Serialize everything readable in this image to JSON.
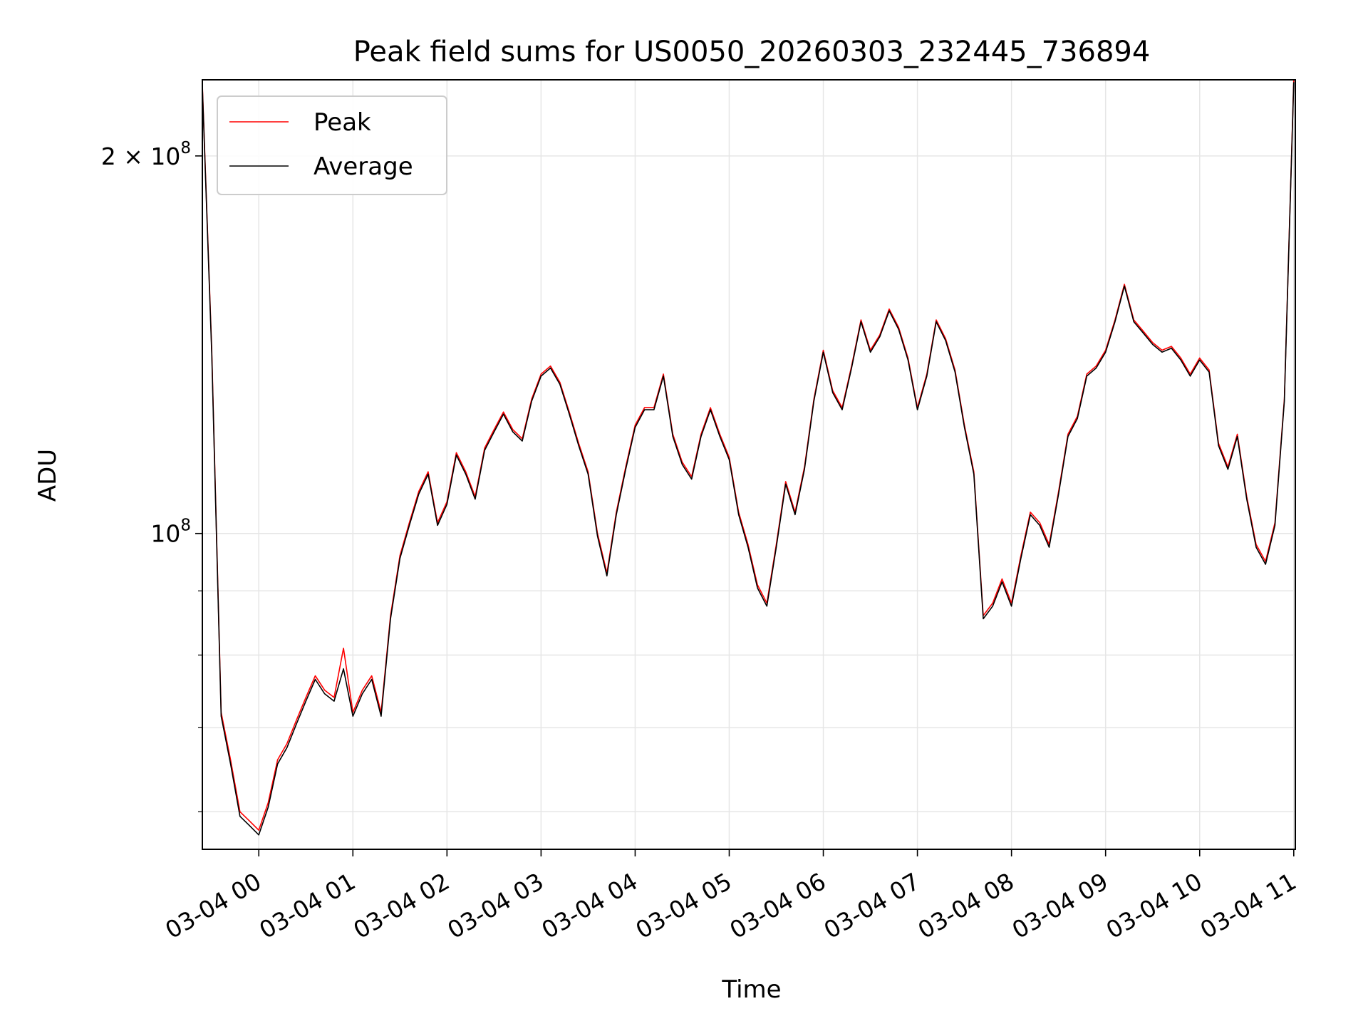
{
  "chart_data": {
    "type": "line",
    "title": "Peak field sums for US0050_20260303_232445_736894",
    "xlabel": "Time",
    "ylabel": "ADU",
    "yscale": "log",
    "ylim": [
      56000000,
      230000000
    ],
    "xlim": [
      "03-03 23:24",
      "03-04 11:01"
    ],
    "x_ticks": [
      "03-04 00",
      "03-04 01",
      "03-04 02",
      "03-04 03",
      "03-04 04",
      "03-04 05",
      "03-04 06",
      "03-04 07",
      "03-04 08",
      "03-04 09",
      "03-04 10",
      "03-04 11"
    ],
    "y_ticks": [
      {
        "value": 100000000,
        "base": "10",
        "exp": "8",
        "mult": ""
      },
      {
        "value": 200000000,
        "base": "10",
        "exp": "8",
        "mult": "2 × "
      }
    ],
    "y_minor_ticks": [
      60000000,
      70000000,
      80000000,
      90000000
    ],
    "grid": true,
    "legend_position": "top-left",
    "series": [
      {
        "name": "Peak",
        "color": "#ff0000"
      },
      {
        "name": "Average",
        "color": "#000000"
      }
    ],
    "x": [
      "03-03 23:24",
      "03-03 23:30",
      "03-03 23:36",
      "03-03 23:42",
      "03-03 23:48",
      "03-03 23:54",
      "03-04 00:00",
      "03-04 00:06",
      "03-04 00:12",
      "03-04 00:18",
      "03-04 00:24",
      "03-04 00:30",
      "03-04 00:36",
      "03-04 00:42",
      "03-04 00:48",
      "03-04 00:54",
      "03-04 01:00",
      "03-04 01:06",
      "03-04 01:12",
      "03-04 01:18",
      "03-04 01:24",
      "03-04 01:30",
      "03-04 01:36",
      "03-04 01:42",
      "03-04 01:48",
      "03-04 01:54",
      "03-04 02:00",
      "03-04 02:06",
      "03-04 02:12",
      "03-04 02:18",
      "03-04 02:24",
      "03-04 02:30",
      "03-04 02:36",
      "03-04 02:42",
      "03-04 02:48",
      "03-04 02:54",
      "03-04 03:00",
      "03-04 03:06",
      "03-04 03:12",
      "03-04 03:18",
      "03-04 03:24",
      "03-04 03:30",
      "03-04 03:36",
      "03-04 03:42",
      "03-04 03:48",
      "03-04 03:54",
      "03-04 04:00",
      "03-04 04:06",
      "03-04 04:12",
      "03-04 04:18",
      "03-04 04:24",
      "03-04 04:30",
      "03-04 04:36",
      "03-04 04:42",
      "03-04 04:48",
      "03-04 04:54",
      "03-04 05:00",
      "03-04 05:06",
      "03-04 05:12",
      "03-04 05:18",
      "03-04 05:24",
      "03-04 05:30",
      "03-04 05:36",
      "03-04 05:42",
      "03-04 05:48",
      "03-04 05:54",
      "03-04 06:00",
      "03-04 06:06",
      "03-04 06:12",
      "03-04 06:18",
      "03-04 06:24",
      "03-04 06:30",
      "03-04 06:36",
      "03-04 06:42",
      "03-04 06:48",
      "03-04 06:54",
      "03-04 07:00",
      "03-04 07:06",
      "03-04 07:12",
      "03-04 07:18",
      "03-04 07:24",
      "03-04 07:30",
      "03-04 07:36",
      "03-04 07:42",
      "03-04 07:48",
      "03-04 07:54",
      "03-04 08:00",
      "03-04 08:06",
      "03-04 08:12",
      "03-04 08:18",
      "03-04 08:24",
      "03-04 08:30",
      "03-04 08:36",
      "03-04 08:42",
      "03-04 08:48",
      "03-04 08:54",
      "03-04 09:00",
      "03-04 09:06",
      "03-04 09:12",
      "03-04 09:18",
      "03-04 09:24",
      "03-04 09:30",
      "03-04 09:36",
      "03-04 09:42",
      "03-04 09:48",
      "03-04 09:54",
      "03-04 10:00",
      "03-04 10:06",
      "03-04 10:12",
      "03-04 10:18",
      "03-04 10:24",
      "03-04 10:30",
      "03-04 10:36",
      "03-04 10:42",
      "03-04 10:48",
      "03-04 10:54",
      "03-04 11:00"
    ],
    "values_peak": [
      228000000,
      140000000,
      72000000,
      66000000,
      60000000,
      59000000,
      58000000,
      61000000,
      66000000,
      68000000,
      71000000,
      74000000,
      77000000,
      75000000,
      74000000,
      81000000,
      72000000,
      75000000,
      77000000,
      72000000,
      86000000,
      96000000,
      102000000,
      108000000,
      112000000,
      102000000,
      106000000,
      116000000,
      112000000,
      107000000,
      117000000,
      121000000,
      125000000,
      121000000,
      119000000,
      128000000,
      134000000,
      136000000,
      132000000,
      125000000,
      118000000,
      112000000,
      100000000,
      93000000,
      104000000,
      113000000,
      122000000,
      126000000,
      126000000,
      134000000,
      120000000,
      114000000,
      111000000,
      120000000,
      126000000,
      120000000,
      115000000,
      104000000,
      98000000,
      91000000,
      88000000,
      98000000,
      110000000,
      104000000,
      113000000,
      128000000,
      140000000,
      130000000,
      126000000,
      136000000,
      148000000,
      140000000,
      144000000,
      151000000,
      146000000,
      138000000,
      126000000,
      134000000,
      148000000,
      143000000,
      135000000,
      122000000,
      112000000,
      86000000,
      88000000,
      92000000,
      88000000,
      96000000,
      104000000,
      102000000,
      98000000,
      108000000,
      120000000,
      124000000,
      134000000,
      136000000,
      140000000,
      148000000,
      158000000,
      148000000,
      145000000,
      142000000,
      140000000,
      141000000,
      138000000,
      134000000,
      138000000,
      135000000,
      118000000,
      113000000,
      120000000,
      107000000,
      98000000,
      95000000,
      102000000,
      128000000,
      230000000
    ],
    "values_average": [
      227000000,
      139000000,
      71500000,
      65500000,
      59500000,
      58500000,
      57500000,
      60500000,
      65500000,
      67500000,
      70500000,
      73500000,
      76500000,
      74500000,
      73500000,
      78000000,
      71500000,
      74500000,
      76500000,
      71500000,
      85500000,
      95500000,
      101500000,
      107500000,
      111500000,
      101500000,
      105500000,
      115500000,
      111500000,
      106500000,
      116500000,
      120500000,
      124500000,
      120500000,
      118500000,
      127500000,
      133500000,
      135500000,
      131500000,
      124500000,
      117500000,
      111500000,
      99500000,
      92500000,
      103500000,
      112500000,
      121500000,
      125500000,
      125500000,
      133500000,
      119500000,
      113500000,
      110500000,
      119500000,
      125500000,
      119500000,
      114500000,
      103500000,
      97500000,
      90500000,
      87500000,
      97500000,
      109500000,
      103500000,
      112500000,
      127500000,
      139500000,
      129500000,
      125500000,
      135500000,
      147500000,
      139500000,
      143500000,
      150500000,
      145500000,
      137500000,
      125500000,
      133500000,
      147500000,
      142500000,
      134500000,
      121500000,
      111500000,
      85500000,
      87500000,
      91500000,
      87500000,
      95500000,
      103500000,
      101500000,
      97500000,
      107500000,
      119500000,
      123500000,
      133500000,
      135500000,
      139500000,
      147500000,
      157500000,
      147500000,
      144500000,
      141500000,
      139500000,
      140500000,
      137500000,
      133500000,
      137500000,
      134500000,
      117500000,
      112500000,
      119500000,
      106500000,
      97500000,
      94500000,
      101500000,
      127500000,
      229000000
    ]
  }
}
